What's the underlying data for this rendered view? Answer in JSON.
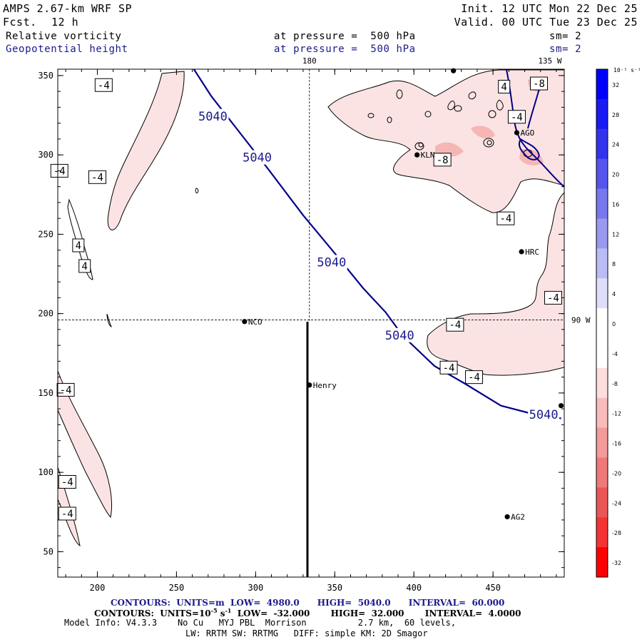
{
  "header": {
    "model": "AMPS 2.67-km WRF SP",
    "forecast_label": "Fcst.",
    "forecast_value": "12 h",
    "init": "Init. 12 UTC Mon 22 Dec 25",
    "valid": "Valid. 00 UTC Tue 23 Dec 25",
    "field1_name": "Relative vorticity",
    "field1_level": "at pressure =  500 hPa",
    "field1_smooth": "sm= 2",
    "field2_name": "Geopotential height",
    "field2_level": "at pressure =  500 hPa",
    "field2_smooth": "sm= 2"
  },
  "map": {
    "x_ticks": [
      "200",
      "250",
      "300",
      "350",
      "400",
      "450"
    ],
    "y_ticks": [
      "350",
      "300",
      "250",
      "200",
      "150",
      "100",
      "50"
    ],
    "x_range": [
      175,
      495
    ],
    "y_range": [
      34,
      354
    ],
    "meridians": [
      {
        "label": "180",
        "x": 334
      },
      {
        "label": "135 W",
        "x": 787
      }
    ],
    "parallels": [
      {
        "label": "90 W",
        "y": 196
      }
    ],
    "stations": [
      {
        "name": "NCO",
        "x": 293,
        "y": 195
      },
      {
        "name": "Henry",
        "x": 334,
        "y": 155
      },
      {
        "name": "HRC",
        "x": 468,
        "y": 239
      },
      {
        "name": "KLN",
        "x": 402,
        "y": 300
      },
      {
        "name": "AGO",
        "x": 465,
        "y": 314
      },
      {
        "name": "AG2",
        "x": 459,
        "y": 72
      },
      {
        "name": "",
        "x": 425,
        "y": 353
      },
      {
        "name": "",
        "x": 493,
        "y": 142
      }
    ],
    "height_contour": {
      "value": "5040",
      "labels": [
        {
          "text": "5040",
          "x": 273,
          "y": 324
        },
        {
          "text": "5040",
          "x": 301,
          "y": 298
        },
        {
          "text": "5040",
          "x": 348,
          "y": 232
        },
        {
          "text": "5040",
          "x": 391,
          "y": 186
        },
        {
          "text": "5040",
          "x": 482,
          "y": 136
        }
      ],
      "path": [
        [
          261,
          354
        ],
        [
          272,
          337
        ],
        [
          290,
          314
        ],
        [
          308,
          291
        ],
        [
          330,
          262
        ],
        [
          350,
          238
        ],
        [
          368,
          216
        ],
        [
          382,
          201
        ],
        [
          393,
          186
        ],
        [
          413,
          167
        ],
        [
          432,
          156
        ],
        [
          455,
          142
        ],
        [
          478,
          136
        ],
        [
          493,
          134
        ]
      ]
    },
    "vorticity_labels": [
      {
        "text": "-4",
        "x": 204,
        "y": 344
      },
      {
        "text": "-4",
        "x": 176,
        "y": 290
      },
      {
        "text": "-4",
        "x": 200,
        "y": 286
      },
      {
        "text": "4",
        "x": 188,
        "y": 243
      },
      {
        "text": "4",
        "x": 192,
        "y": 230
      },
      {
        "text": "-4",
        "x": 180,
        "y": 152
      },
      {
        "text": "-4",
        "x": 181,
        "y": 94
      },
      {
        "text": "-4",
        "x": 181,
        "y": 74
      },
      {
        "text": "4",
        "x": 457,
        "y": 343
      },
      {
        "text": "-8",
        "x": 479,
        "y": 345
      },
      {
        "text": "-4",
        "x": 465,
        "y": 324
      },
      {
        "text": "-8",
        "x": 418,
        "y": 297
      },
      {
        "text": "-4",
        "x": 458,
        "y": 260
      },
      {
        "text": "-4",
        "x": 488,
        "y": 210
      },
      {
        "text": "-4",
        "x": 426,
        "y": 193
      },
      {
        "text": "-4",
        "x": 422,
        "y": 166
      },
      {
        "text": "-4",
        "x": 438,
        "y": 160
      }
    ]
  },
  "colorbar": {
    "unit": "10⁻⁵ s⁻¹",
    "ticks": [
      "32",
      "28",
      "24",
      "20",
      "16",
      "12",
      "8",
      "4",
      "0",
      "-4",
      "-8",
      "-12",
      "-16",
      "-20",
      "-24",
      "-28",
      "-32"
    ],
    "colors": [
      "#0000ff",
      "#1a1af4",
      "#3333ee",
      "#5555ee",
      "#7777ee",
      "#9999f0",
      "#bbbbf6",
      "#dedefa",
      "#ffffff",
      "#ffffff",
      "#fcdede",
      "#f8bcbc",
      "#f39a9a",
      "#ef7878",
      "#ea5656",
      "#f43434",
      "#ff0000"
    ]
  },
  "footer": {
    "contours1": "CONTOURS:  UNITS=m  LOW=  4980.0      HIGH=  5040.0      INTERVAL=  60.000",
    "contours2_pre": "CONTOURS:  UNITS=10",
    "contours2_exp": "-5",
    "contours2_mid": " s",
    "contours2_exp2": "-1",
    "contours2_post": "  LOW=  -32.000       HIGH=  32.000       INTERVAL=  4.0000",
    "model_info": "Model Info: V4.3.3    No Cu   MYJ PBL  Morrison          2.7 km,  60 levels,",
    "model_info2": "LW: RRTM SW: RRTMG   DIFF: simple KM: 2D Smagor"
  }
}
